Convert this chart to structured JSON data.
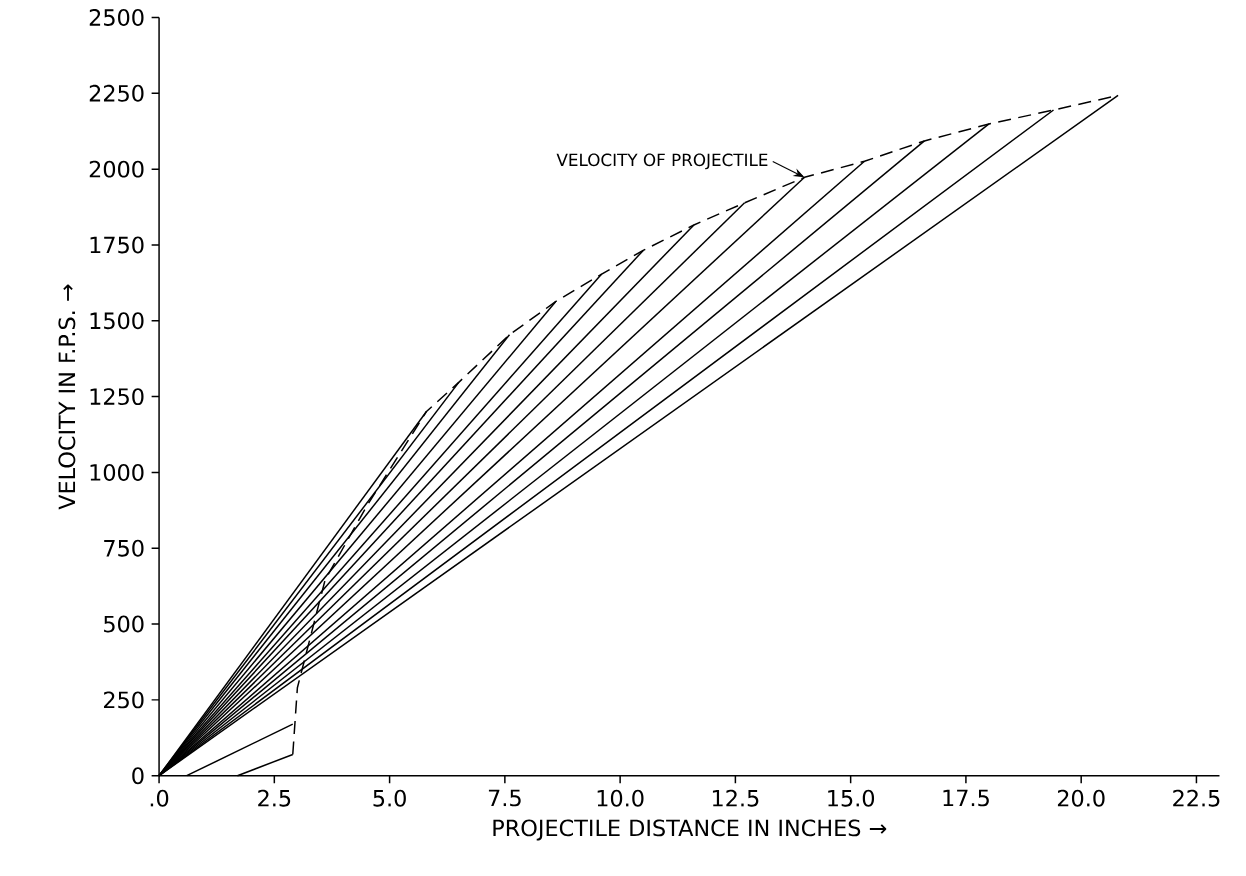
{
  "chart_data": {
    "type": "line",
    "xlabel": "PROJECTILE DISTANCE IN INCHES →",
    "ylabel": "VELOCITY IN F.P.S. →",
    "xlim": [
      0,
      23
    ],
    "ylim": [
      0,
      2500
    ],
    "xticks": [
      {
        "value": 0,
        "label": ".0"
      },
      2.5,
      {
        "value": 5,
        "label": "5.0"
      },
      7.5,
      {
        "value": 10,
        "label": "10.0"
      },
      12.5,
      {
        "value": 15,
        "label": "15.0"
      },
      17.5,
      {
        "value": 20,
        "label": "20.0"
      },
      22.5
    ],
    "yticks": [
      0,
      250,
      500,
      750,
      1000,
      1250,
      1500,
      1750,
      2000,
      2250,
      2500
    ],
    "marker": "none",
    "annotations": [
      {
        "text": "VELOCITY OF PROJECTILE",
        "x": 14.0,
        "y": 1973
      }
    ],
    "series": [
      {
        "color": "#000000",
        "line_style": "dashed",
        "x": [
          2.9,
          3.0,
          3.6,
          4.5,
          5.8,
          6.5,
          7.6,
          8.6,
          9.6,
          10.5,
          11.6,
          12.7,
          14.0,
          15.3,
          16.6,
          18.0,
          19.4,
          20.8
        ],
        "values": [
          70,
          290,
          645,
          888,
          1201,
          1297,
          1454,
          1563,
          1654,
          1732,
          1816,
          1889,
          1973,
          2026,
          2093,
          2149,
          2195,
          2243
        ]
      },
      {
        "color": "#000000",
        "line_style": "solid",
        "x": [
          0,
          20.8
        ],
        "values": [
          0,
          2243
        ]
      },
      {
        "color": "#000000",
        "line_style": "solid",
        "x": [
          0,
          19.4
        ],
        "values": [
          0,
          2195
        ]
      },
      {
        "color": "#000000",
        "line_style": "solid",
        "x": [
          0,
          18.0
        ],
        "values": [
          0,
          2149
        ]
      },
      {
        "color": "#000000",
        "line_style": "solid",
        "x": [
          0,
          16.6
        ],
        "values": [
          0,
          2093
        ]
      },
      {
        "color": "#000000",
        "line_style": "solid",
        "x": [
          0,
          15.3
        ],
        "values": [
          0,
          2026
        ]
      },
      {
        "color": "#000000",
        "line_style": "solid",
        "x": [
          0,
          14.0
        ],
        "values": [
          0,
          1973
        ]
      },
      {
        "color": "#000000",
        "line_style": "solid",
        "x": [
          0,
          12.7
        ],
        "values": [
          0,
          1889
        ]
      },
      {
        "color": "#000000",
        "line_style": "solid",
        "x": [
          0,
          11.6
        ],
        "values": [
          0,
          1816
        ]
      },
      {
        "color": "#000000",
        "line_style": "solid",
        "x": [
          0,
          10.5
        ],
        "values": [
          0,
          1732
        ]
      },
      {
        "color": "#000000",
        "line_style": "solid",
        "x": [
          0,
          9.6
        ],
        "values": [
          0,
          1654
        ]
      },
      {
        "color": "#000000",
        "line_style": "solid",
        "x": [
          0,
          8.6
        ],
        "values": [
          0,
          1563
        ]
      },
      {
        "color": "#000000",
        "line_style": "solid",
        "x": [
          0,
          7.6
        ],
        "values": [
          0,
          1454
        ]
      },
      {
        "color": "#000000",
        "line_style": "solid",
        "x": [
          0,
          6.5
        ],
        "values": [
          0,
          1297
        ]
      },
      {
        "color": "#000000",
        "line_style": "solid",
        "x": [
          0,
          5.8
        ],
        "values": [
          0,
          1201
        ]
      },
      {
        "color": "#000000",
        "line_style": "solid",
        "x": [
          0.6,
          2.9
        ],
        "values": [
          0,
          170
        ]
      },
      {
        "color": "#000000",
        "line_style": "solid",
        "x": [
          1.7,
          2.9
        ],
        "values": [
          0,
          70
        ]
      }
    ]
  }
}
